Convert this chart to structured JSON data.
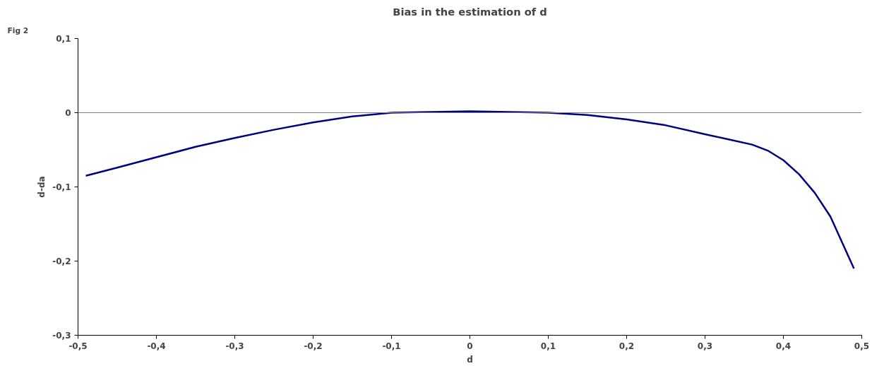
{
  "chart_data": {
    "type": "line",
    "title": "Bias in the estimation of d",
    "xlabel": "d",
    "ylabel": "d-da",
    "annotations": [
      "Fig 2"
    ],
    "x": [
      -0.49,
      -0.45,
      -0.4,
      -0.35,
      -0.3,
      -0.25,
      -0.2,
      -0.15,
      -0.1,
      -0.05,
      0,
      0.05,
      0.1,
      0.15,
      0.2,
      0.25,
      0.3,
      0.33,
      0.36,
      0.38,
      0.4,
      0.42,
      0.44,
      0.46,
      0.49
    ],
    "series": [
      {
        "color": "#000080",
        "values": [
          -0.085,
          -0.074,
          -0.06,
          -0.046,
          -0.034,
          -0.023,
          -0.013,
          -0.005,
          0.0,
          0.001,
          0.002,
          0.001,
          0.0,
          -0.003,
          -0.009,
          -0.017,
          -0.029,
          -0.036,
          -0.043,
          -0.051,
          -0.064,
          -0.083,
          -0.108,
          -0.14,
          -0.21
        ]
      }
    ],
    "xlim": [
      -0.5,
      0.5
    ],
    "ylim": [
      -0.3,
      0.1
    ],
    "xticks": [
      {
        "value": -0.5,
        "label": "-0,5"
      },
      {
        "value": -0.4,
        "label": "-0,4"
      },
      {
        "value": -0.3,
        "label": "-0,3"
      },
      {
        "value": -0.2,
        "label": "-0,2"
      },
      {
        "value": -0.1,
        "label": "-0,1"
      },
      0,
      {
        "value": 0.1,
        "label": "0,1"
      },
      {
        "value": 0.2,
        "label": "0,2"
      },
      {
        "value": 0.3,
        "label": "0,3"
      },
      {
        "value": 0.4,
        "label": "0,4"
      },
      {
        "value": 0.5,
        "label": "0,5"
      }
    ],
    "yticks": [
      {
        "value": -0.3,
        "label": "-0,3"
      },
      {
        "value": -0.2,
        "label": "-0,2"
      },
      {
        "value": -0.1,
        "label": "-0,1"
      },
      0,
      {
        "value": 0.1,
        "label": "0,1"
      }
    ],
    "ref_lines": [
      {
        "axis": "y",
        "value": 0,
        "color": "#808080"
      }
    ],
    "grid": false,
    "marker": "none",
    "line_style": "solid"
  }
}
